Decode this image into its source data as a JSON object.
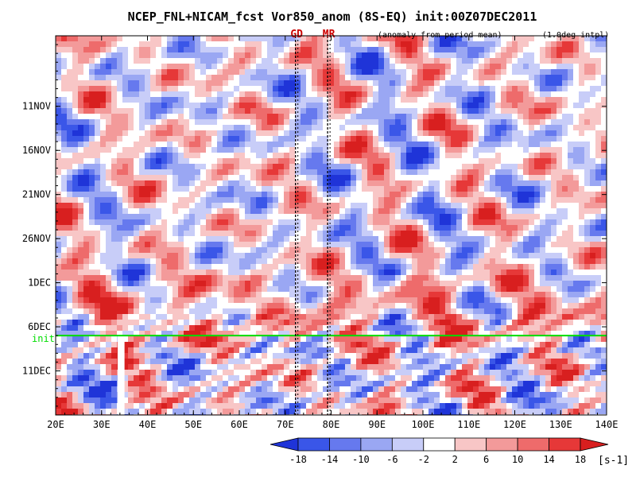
{
  "chart_data": {
    "type": "heatmap",
    "title": "NCEP_FNL+NICAM_fcst Vor850_anom (8S-EQ) init:00Z07DEC2011",
    "subtitle_left": "(anomaly from period mean)",
    "subtitle_right": "(1.0deg intpl)",
    "x_ticks": [
      "20E",
      "30E",
      "40E",
      "50E",
      "60E",
      "70E",
      "80E",
      "90E",
      "100E",
      "110E",
      "120E",
      "130E",
      "140E"
    ],
    "x_range": [
      20,
      140
    ],
    "y_ticks": [
      "11NOV",
      "16NOV",
      "21NOV",
      "26NOV",
      "1DEC",
      "6DEC",
      "11DEC"
    ],
    "y_tick_days": [
      11,
      16,
      21,
      26,
      31,
      36,
      41
    ],
    "y_range_days": [
      3,
      46
    ],
    "init_label": "init",
    "init_day": 37,
    "station_markers": [
      {
        "label": "GD",
        "lon": 72.5
      },
      {
        "label": "MR",
        "lon": 79.5
      }
    ],
    "colorbar": {
      "ticks": [
        "-18",
        "-14",
        "-10",
        "-6",
        "-2",
        "2",
        "6",
        "10",
        "14",
        "18"
      ],
      "unit": "[s-1]",
      "colors": [
        "#1f34d8",
        "#3a56e8",
        "#6679ee",
        "#9aa7f3",
        "#c8cdf8",
        "#ffffff",
        "#f8c6c6",
        "#f39a9a",
        "#ee6b6b",
        "#e63838",
        "#d81f1f"
      ]
    },
    "data_gap_lon": [
      33.5,
      35
    ]
  }
}
